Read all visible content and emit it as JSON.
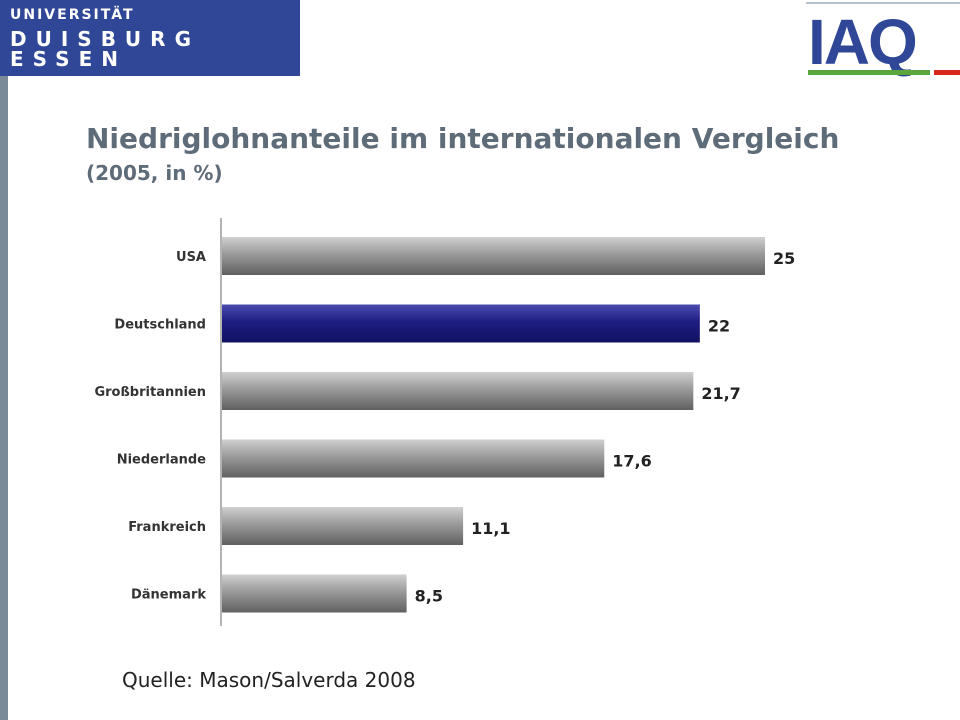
{
  "header": {
    "university_logo": {
      "line1": "UNIVERSITÄT",
      "line2": "DUISBURG",
      "line3": "ESSEN"
    },
    "institute_logo": {
      "text": "IAQ"
    }
  },
  "slide": {
    "title": "Niedriglohnanteile im internationalen Vergleich",
    "subtitle": "(2005, in %)",
    "source": "Quelle: Mason/Salverda 2008"
  },
  "colors": {
    "brand_blue": "#2f4796",
    "highlight_bar": "#1e1e82",
    "default_bar": "#8a8a8a",
    "title_gray": "#5e6b78",
    "logo_green": "#5aa63c",
    "logo_red": "#d8281e"
  },
  "chart_data": {
    "type": "bar",
    "orientation": "horizontal",
    "title": "Niedriglohnanteile im internationalen Vergleich",
    "subtitle": "(2005, in %)",
    "categories": [
      "USA",
      "Deutschland",
      "Großbritannien",
      "Niederlande",
      "Frankreich",
      "Dänemark"
    ],
    "values": [
      25,
      22,
      21.7,
      17.6,
      11.1,
      8.5
    ],
    "value_labels": [
      "25",
      "22",
      "21,7",
      "17,6",
      "11,1",
      "8,5"
    ],
    "highlight": "Deutschland",
    "xlim": [
      0,
      25.9
    ],
    "xlabel": "",
    "ylabel": "",
    "grid": false,
    "legend": "none"
  }
}
